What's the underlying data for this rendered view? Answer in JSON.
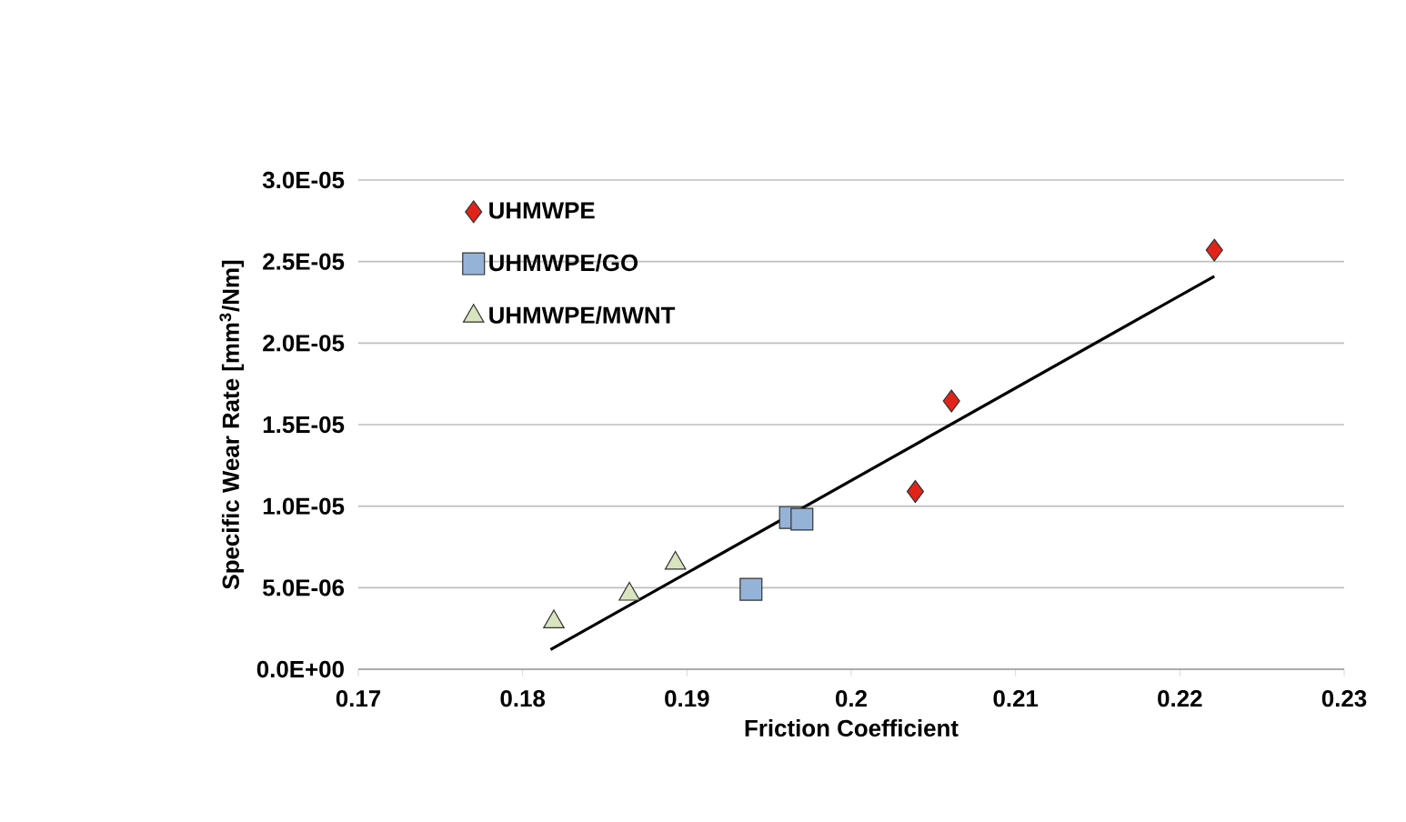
{
  "chart_data": {
    "type": "scatter",
    "xlabel": "Friction Coefficient",
    "ylabel": "Specific Wear Rate [mm$^{3}$/Nm]",
    "xlim": [
      0.17,
      0.23
    ],
    "xticks": [
      0.17,
      0.18,
      0.19,
      0.2,
      0.21,
      0.22,
      0.23
    ],
    "ylim": [
      0,
      3e-05
    ],
    "yticks": [
      {
        "value": 0,
        "label": "0.0E+00"
      },
      {
        "value": 5e-06,
        "label": "5.0E-06"
      },
      {
        "value": 1e-05,
        "label": "1.0E-05"
      },
      {
        "value": 1.5e-05,
        "label": "1.5E-05"
      },
      {
        "value": 2e-05,
        "label": "2.0E-05"
      },
      {
        "value": 2.5e-05,
        "label": "2.5E-05"
      },
      {
        "value": 3e-05,
        "label": "3.0E-05"
      }
    ],
    "grid": "y",
    "legend": "top left",
    "series": [
      {
        "name": "UHMWPE",
        "color": "#e2231a",
        "marker": "diamond",
        "x": [
          0.2221,
          0.2061,
          0.2039
        ],
        "values": [
          2.57e-05,
          1.645e-05,
          1.09e-05
        ]
      },
      {
        "name": "UHMWPE/GO",
        "color": "#95b3d7",
        "marker": "square",
        "x": [
          0.1939,
          0.1963,
          0.197
        ],
        "values": [
          4.9e-06,
          9.3e-06,
          9.2e-06
        ]
      },
      {
        "name": "UHMWPE/MWNT",
        "color": "#d7e4bd",
        "marker": "triangle",
        "x": [
          0.1819,
          0.1865,
          0.1893
        ],
        "values": [
          2.9e-06,
          4.6e-06,
          6.5e-06
        ]
      },
      {
        "type": "line",
        "color": "#000000",
        "marker": "none",
        "x": [
          0.1817,
          0.2221
        ],
        "values": [
          1.2e-06,
          2.41e-05
        ]
      }
    ]
  }
}
